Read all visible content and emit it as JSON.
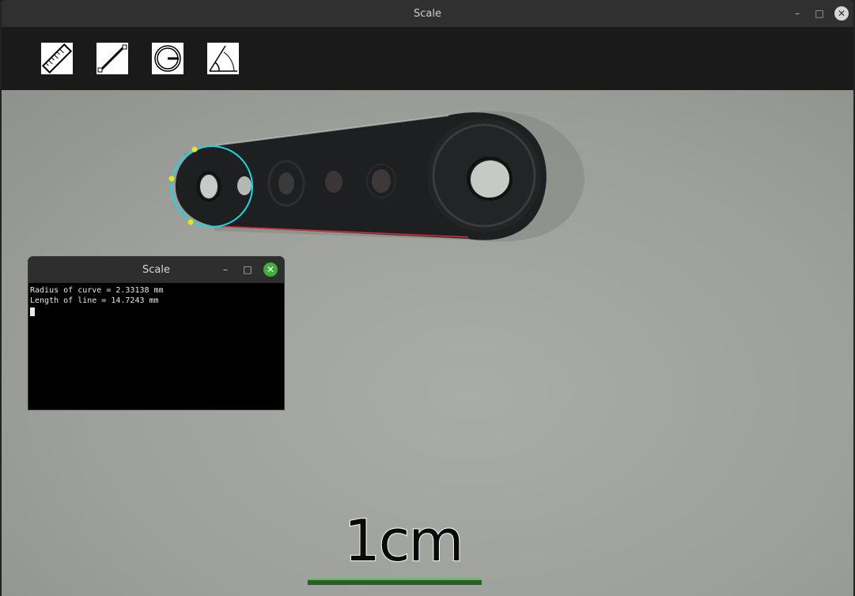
{
  "window": {
    "title": "Scale",
    "minimize_icon": "minimize-icon",
    "maximize_icon": "maximize-icon",
    "close_icon": "close-icon"
  },
  "toolbar": {
    "tools": [
      {
        "name": "ruler-tool",
        "icon": "ruler-icon"
      },
      {
        "name": "line-tool",
        "icon": "line-icon"
      },
      {
        "name": "radius-tool",
        "icon": "circle-radius-icon"
      },
      {
        "name": "angle-tool",
        "icon": "angle-icon"
      }
    ]
  },
  "canvas": {
    "scale_label": "1cm",
    "circle_color": "#16d9e8",
    "line_color": "#d8323a",
    "point_color": "#f2e01b",
    "scale_bar_color": "#4cc94a"
  },
  "terminal": {
    "title": "Scale",
    "lines": [
      "Radius of curve = 2.33138 mm",
      "Length of line = 14.7243 mm"
    ]
  }
}
